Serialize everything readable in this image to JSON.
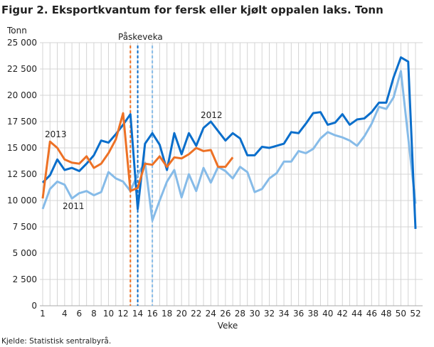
{
  "chart_data": {
    "type": "line",
    "title": "Figur 2. Eksportkvantum for fersk eller kjølt oppalen laks. Tonn",
    "ylabel": "Tonn",
    "xlabel": "Veke",
    "source": "Kjelde: Statistisk sentralbyrå.",
    "ylim": [
      0,
      25000
    ],
    "yticks": [
      0,
      2500,
      5000,
      7500,
      10000,
      12500,
      15000,
      17500,
      20000,
      22500,
      25000
    ],
    "ytick_labels": [
      "0",
      "2 500",
      "5 000",
      "7 500",
      "10 000",
      "12 500",
      "15 000",
      "17 500",
      "20 000",
      "22 500",
      "25 000"
    ],
    "xlim": [
      1,
      52
    ],
    "xticks": [
      1,
      4,
      6,
      8,
      10,
      12,
      14,
      16,
      18,
      20,
      22,
      24,
      26,
      28,
      30,
      32,
      34,
      36,
      38,
      40,
      42,
      44,
      46,
      48,
      50,
      52
    ],
    "grid": true,
    "annotation": "Påskeveka",
    "series": [
      {
        "name": "2011",
        "color": "#86bbe8",
        "easter_week": 16,
        "values": [
          9200,
          11100,
          11800,
          11500,
          10200,
          10700,
          10900,
          10500,
          10800,
          12700,
          12100,
          11800,
          10900,
          12500,
          13600,
          8100,
          10000,
          11800,
          12900,
          10300,
          12500,
          10900,
          13100,
          11700,
          13200,
          12800,
          12100,
          13200,
          12700,
          10800,
          11100,
          12100,
          12600,
          13700,
          13700,
          14700,
          14500,
          14900,
          15900,
          16500,
          16200,
          16000,
          15700,
          15200,
          16100,
          17300,
          18900,
          18700,
          19800,
          22300,
          16000,
          9700
        ]
      },
      {
        "name": "2012",
        "color": "#0a6ecb",
        "easter_week": 14,
        "values": [
          11700,
          12400,
          13900,
          12900,
          13100,
          12800,
          13500,
          14300,
          15700,
          15500,
          16300,
          17200,
          18200,
          9200,
          15400,
          16400,
          15300,
          12900,
          16400,
          14400,
          16400,
          15200,
          16900,
          17500,
          16600,
          15700,
          16400,
          15900,
          14300,
          14300,
          15100,
          15000,
          15200,
          15400,
          16500,
          16400,
          17300,
          18300,
          18400,
          17200,
          17400,
          18200,
          17200,
          17700,
          17800,
          18400,
          19300,
          19300,
          21700,
          23600,
          23200,
          7300
        ]
      },
      {
        "name": "2013",
        "color": "#ed7125",
        "easter_week": 13,
        "values": [
          10200,
          15600,
          15000,
          13900,
          13600,
          13500,
          14200,
          13100,
          13500,
          14500,
          15800,
          18300,
          10900,
          11200,
          13500,
          13400,
          14200,
          13200,
          14100,
          14000,
          14400,
          15000,
          14700,
          14800,
          13200,
          13200,
          14100
        ]
      }
    ]
  }
}
